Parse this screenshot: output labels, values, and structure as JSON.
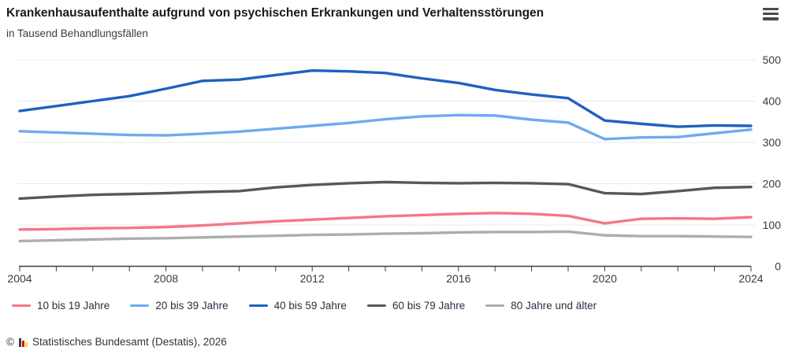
{
  "header": {
    "title": "Krankenhausaufenthalte aufgrund von psychischen Erkrankungen und Verhaltensstörungen",
    "subtitle": "in Tausend Behandlungsfällen",
    "menu_icon": "hamburger-icon"
  },
  "chart_data": {
    "type": "line",
    "title": "Krankenhausaufenthalte aufgrund von psychischen Erkrankungen und Verhaltensstörungen",
    "subtitle": "in Tausend Behandlungsfällen",
    "unit": "Tausend Behandlungsfälle",
    "x": [
      2004,
      2005,
      2006,
      2007,
      2008,
      2009,
      2010,
      2011,
      2012,
      2013,
      2014,
      2015,
      2016,
      2017,
      2018,
      2019,
      2020,
      2021,
      2022,
      2023,
      2024
    ],
    "xticks_labeled": [
      2004,
      2008,
      2012,
      2016,
      2020,
      2024
    ],
    "yticks": [
      0,
      100,
      200,
      300,
      400,
      500
    ],
    "ylim": [
      0,
      500
    ],
    "grid": "horizontal",
    "legend_position": "bottom",
    "y_axis_side": "right",
    "series": [
      {
        "name": "10 bis 19 Jahre",
        "color": "#f4778a",
        "values": [
          89,
          90,
          92,
          93,
          95,
          99,
          104,
          109,
          113,
          117,
          121,
          124,
          127,
          129,
          127,
          122,
          104,
          115,
          116,
          115,
          119
        ]
      },
      {
        "name": "20 bis 39 Jahre",
        "color": "#70a9f1",
        "values": [
          327,
          324,
          321,
          318,
          317,
          321,
          326,
          333,
          340,
          347,
          356,
          363,
          366,
          365,
          355,
          348,
          308,
          312,
          313,
          322,
          331
        ]
      },
      {
        "name": "40 bis 59 Jahre",
        "color": "#1f61c0",
        "values": [
          376,
          388,
          400,
          412,
          430,
          449,
          452,
          463,
          474,
          472,
          468,
          455,
          444,
          427,
          416,
          407,
          353,
          345,
          338,
          341,
          340
        ]
      },
      {
        "name": "60 bis 79 Jahre",
        "color": "#585858",
        "values": [
          164,
          169,
          173,
          175,
          177,
          180,
          182,
          191,
          197,
          201,
          204,
          202,
          201,
          202,
          201,
          199,
          177,
          175,
          182,
          190,
          192
        ]
      },
      {
        "name": "80 Jahre und älter",
        "color": "#adadad",
        "values": [
          61,
          63,
          65,
          67,
          68,
          70,
          72,
          74,
          76,
          77,
          79,
          80,
          82,
          83,
          83,
          84,
          75,
          73,
          73,
          72,
          71
        ]
      }
    ],
    "axis_color": "#3c3c3c",
    "gridline_color": "#e9e9e9",
    "tick_label_color": "#3a3a3a"
  },
  "footer": {
    "copyright": "©",
    "source": "Statistisches Bundesamt (Destatis), 2026",
    "logo_icon": "destatis-bar-chart-icon",
    "logo_colors": [
      "#3b3b3a",
      "#e2001a",
      "#ffd500"
    ]
  }
}
